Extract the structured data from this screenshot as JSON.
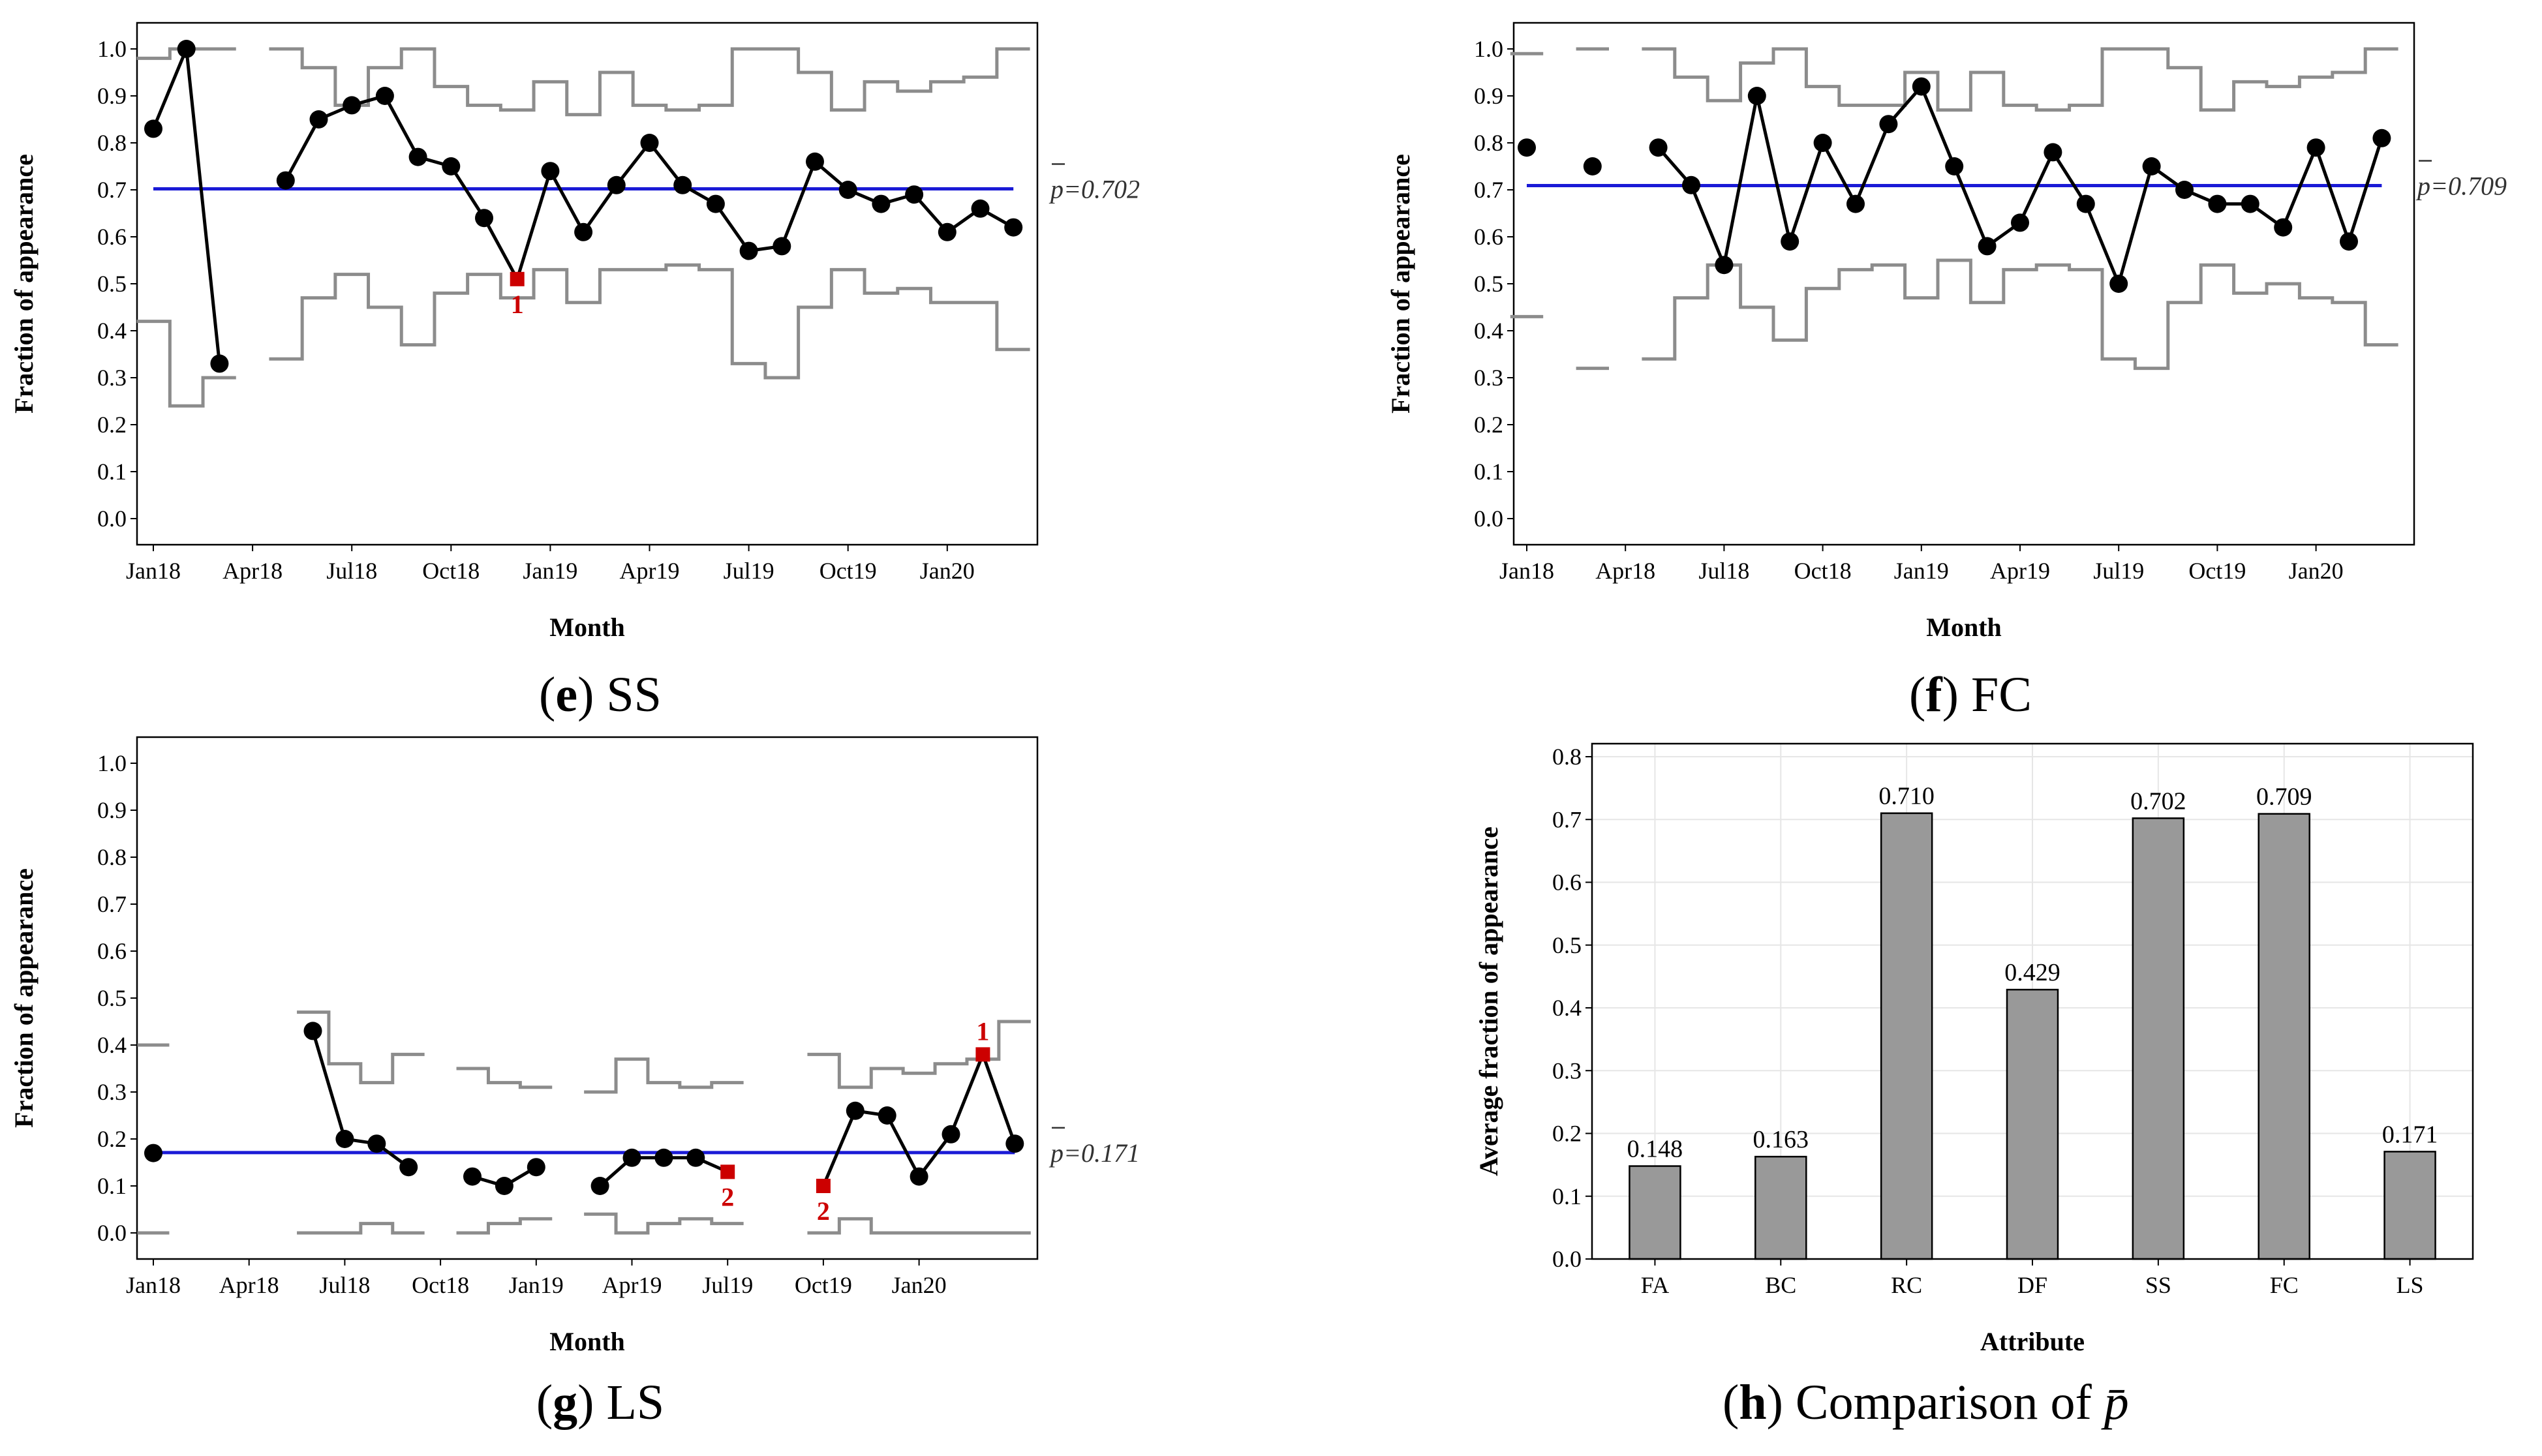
{
  "colors": {
    "center_line": "#1a1ad6",
    "limits": "#8c8c8c",
    "points": "#000000",
    "flag": "#cc0000",
    "bar_fill": "#999999",
    "grid": "#e6e6e6"
  },
  "captions": {
    "e": {
      "letter": "e",
      "text": ") SS"
    },
    "f": {
      "letter": "f",
      "text": ") FC"
    },
    "g": {
      "letter": "g",
      "text": ") LS"
    },
    "h": {
      "letter": "h",
      "text": ") Comparison of "
    }
  },
  "chart_data": [
    {
      "id": "e",
      "type": "line",
      "title": "SS",
      "xlabel": "Month",
      "ylabel": "Fraction of appearance",
      "ylim": [
        0,
        1
      ],
      "yticks": [
        "0.0",
        "0.1",
        "0.2",
        "0.3",
        "0.4",
        "0.5",
        "0.6",
        "0.7",
        "0.8",
        "0.9",
        "1.0"
      ],
      "xticks": [
        "Jan18",
        "Apr18",
        "Jul18",
        "Oct18",
        "Jan19",
        "Apr19",
        "Jul19",
        "Oct19",
        "Jan20"
      ],
      "center": 0.702,
      "center_label": "p=0.702",
      "points": [
        0.83,
        1.0,
        0.33,
        null,
        0.72,
        0.85,
        0.88,
        0.9,
        0.77,
        0.75,
        0.64,
        0.51,
        0.74,
        0.61,
        0.71,
        0.8,
        0.71,
        0.67,
        0.57,
        0.58,
        0.76,
        0.7,
        0.67,
        0.69,
        0.61,
        0.66,
        0.62
      ],
      "ucl": [
        0.98,
        1.0,
        1.0,
        null,
        1.0,
        0.96,
        0.88,
        0.96,
        1.0,
        0.92,
        0.88,
        0.87,
        0.93,
        0.86,
        0.95,
        0.88,
        0.87,
        0.88,
        1.0,
        1.0,
        0.95,
        0.87,
        0.93,
        0.91,
        0.93,
        0.94,
        1.0
      ],
      "lcl": [
        0.42,
        0.24,
        0.3,
        null,
        0.34,
        0.47,
        0.52,
        0.45,
        0.37,
        0.48,
        0.52,
        0.47,
        0.53,
        0.46,
        0.53,
        0.53,
        0.54,
        0.53,
        0.33,
        0.3,
        0.45,
        0.53,
        0.48,
        0.49,
        0.46,
        0.46,
        0.36
      ],
      "flags": [
        {
          "index": 11,
          "label": "1"
        }
      ]
    },
    {
      "id": "f",
      "type": "line",
      "title": "FC",
      "xlabel": "Month",
      "ylabel": "Fraction of appearance",
      "ylim": [
        0,
        1
      ],
      "yticks": [
        "0.0",
        "0.1",
        "0.2",
        "0.3",
        "0.4",
        "0.5",
        "0.6",
        "0.7",
        "0.8",
        "0.9",
        "1.0"
      ],
      "xticks": [
        "Jan18",
        "Apr18",
        "Jul18",
        "Oct18",
        "Jan19",
        "Apr19",
        "Jul19",
        "Oct19",
        "Jan20"
      ],
      "center": 0.709,
      "center_label": "p=0.709",
      "points": [
        0.79,
        null,
        0.75,
        null,
        0.79,
        0.71,
        0.54,
        0.9,
        0.59,
        0.8,
        0.67,
        0.84,
        0.92,
        0.75,
        0.58,
        0.63,
        0.78,
        0.67,
        0.5,
        0.75,
        0.7,
        0.67,
        0.67,
        0.62,
        0.79,
        0.59,
        0.81
      ],
      "ucl": [
        0.99,
        null,
        1.0,
        null,
        1.0,
        0.94,
        0.89,
        0.97,
        1.0,
        0.92,
        0.88,
        0.88,
        0.95,
        0.87,
        0.95,
        0.88,
        0.87,
        0.88,
        1.0,
        1.0,
        0.96,
        0.87,
        0.93,
        0.92,
        0.94,
        0.95,
        1.0
      ],
      "lcl": [
        0.43,
        null,
        0.32,
        null,
        0.34,
        0.47,
        0.54,
        0.45,
        0.38,
        0.49,
        0.53,
        0.54,
        0.47,
        0.55,
        0.46,
        0.53,
        0.54,
        0.53,
        0.34,
        0.32,
        0.46,
        0.54,
        0.48,
        0.5,
        0.47,
        0.46,
        0.37
      ],
      "flags": []
    },
    {
      "id": "g",
      "type": "line",
      "title": "LS",
      "xlabel": "Month",
      "ylabel": "Fraction of appearance",
      "ylim": [
        0,
        1
      ],
      "yticks": [
        "0.0",
        "0.1",
        "0.2",
        "0.3",
        "0.4",
        "0.5",
        "0.6",
        "0.7",
        "0.8",
        "0.9",
        "1.0"
      ],
      "xticks": [
        "Jan18",
        "Apr18",
        "Jul18",
        "Oct18",
        "Jan19",
        "Apr19",
        "Jul19",
        "Oct19",
        "Jan20"
      ],
      "center": 0.171,
      "center_label": "p=0.171",
      "points": [
        0.17,
        null,
        null,
        null,
        null,
        0.43,
        0.2,
        0.19,
        0.14,
        null,
        0.12,
        0.1,
        0.14,
        null,
        0.1,
        0.16,
        0.16,
        0.16,
        0.13,
        null,
        null,
        0.1,
        0.26,
        0.25,
        0.12,
        0.21,
        0.38,
        0.19
      ],
      "ucl": [
        0.4,
        null,
        null,
        null,
        null,
        0.47,
        0.36,
        0.32,
        0.38,
        null,
        0.35,
        0.32,
        0.31,
        null,
        0.3,
        0.37,
        0.32,
        0.31,
        0.32,
        null,
        null,
        0.38,
        0.31,
        0.35,
        0.34,
        0.36,
        0.37,
        0.45
      ],
      "lcl": [
        0.0,
        null,
        null,
        null,
        null,
        0.0,
        0.0,
        0.02,
        0.0,
        null,
        0.0,
        0.02,
        0.03,
        null,
        0.04,
        0.0,
        0.02,
        0.03,
        0.02,
        null,
        null,
        0.0,
        0.03,
        0.0,
        0.0,
        0.0,
        0.0,
        0.0
      ],
      "flags": [
        {
          "index": 18,
          "label": "2"
        },
        {
          "index": 21,
          "label": "2"
        },
        {
          "index": 26,
          "label": "1"
        }
      ]
    },
    {
      "id": "h",
      "type": "bar",
      "title": "Comparison of p",
      "xlabel": "Attribute",
      "ylabel": "Average fraction of appearance",
      "ylim": [
        0,
        0.8
      ],
      "yticks": [
        "0.0",
        "0.1",
        "0.2",
        "0.3",
        "0.4",
        "0.5",
        "0.6",
        "0.7",
        "0.8"
      ],
      "categories": [
        "FA",
        "BC",
        "RC",
        "DF",
        "SS",
        "FC",
        "LS"
      ],
      "values": [
        0.148,
        0.163,
        0.71,
        0.429,
        0.702,
        0.709,
        0.171
      ],
      "value_labels": [
        "0.148",
        "0.163",
        "0.710",
        "0.429",
        "0.702",
        "0.709",
        "0.171"
      ]
    }
  ]
}
